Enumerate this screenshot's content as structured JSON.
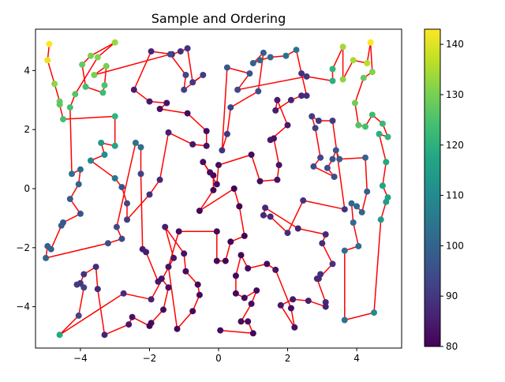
{
  "chart_data": {
    "type": "scatter",
    "title": "Sample and Ordering",
    "xlabel": "",
    "ylabel": "",
    "xlim": [
      -5.3,
      5.3
    ],
    "ylim": [
      -5.4,
      5.4
    ],
    "x_ticks": [
      -4,
      -2,
      0,
      2,
      4
    ],
    "y_ticks": [
      -4,
      -2,
      0,
      2,
      4
    ],
    "grid": false,
    "colormap": "viridis",
    "color_range": [
      80,
      143
    ],
    "colorbar_ticks": [
      80,
      90,
      100,
      110,
      120,
      130,
      140
    ],
    "line_color": "#ff0000",
    "colors": {
      "viridis": [
        "#440154",
        "#482475",
        "#414487",
        "#355f8d",
        "#2a788e",
        "#21918c",
        "#22a884",
        "#44bf70",
        "#7ad151",
        "#bddf26",
        "#fde725"
      ],
      "axes": "#000000",
      "background": "#ffffff"
    },
    "series": [
      {
        "name": "",
        "points": [
          [
            -4.9,
            4.9,
            143
          ],
          [
            -4.95,
            4.35,
            141
          ],
          [
            -4.75,
            3.55,
            132
          ],
          [
            -4.6,
            2.95,
            128
          ],
          [
            -4.6,
            2.85,
            127
          ],
          [
            -4.5,
            2.35,
            124
          ],
          [
            -3.0,
            2.45,
            121
          ],
          [
            -3.0,
            1.45,
            117
          ],
          [
            -3.4,
            1.55,
            114
          ],
          [
            -3.3,
            1.15,
            111
          ],
          [
            -3.7,
            0.95,
            109
          ],
          [
            -3.0,
            0.35,
            105
          ],
          [
            -2.8,
            0.05,
            96
          ],
          [
            -2.65,
            -0.5,
            93
          ],
          [
            -2.65,
            -1.05,
            91
          ],
          [
            -2.0,
            -0.2,
            88
          ],
          [
            -1.7,
            0.3,
            87
          ],
          [
            -1.45,
            1.9,
            85
          ],
          [
            -0.75,
            1.5,
            84
          ],
          [
            -0.35,
            1.45,
            83
          ],
          [
            -0.35,
            1.95,
            82
          ],
          [
            -0.9,
            2.55,
            82
          ],
          [
            -1.7,
            2.7,
            82
          ],
          [
            -1.5,
            2.9,
            83
          ],
          [
            -2.0,
            2.95,
            84
          ],
          [
            -2.45,
            3.35,
            85
          ],
          [
            -1.95,
            4.65,
            86
          ],
          [
            -1.35,
            4.55,
            87
          ],
          [
            -1.1,
            4.65,
            88
          ],
          [
            -0.9,
            4.75,
            89
          ],
          [
            -0.75,
            3.6,
            90
          ],
          [
            -0.45,
            3.85,
            91
          ],
          [
            -1.0,
            3.35,
            92
          ],
          [
            -0.95,
            3.85,
            93
          ],
          [
            -1.4,
            4.55,
            94
          ],
          [
            -3.6,
            3.85,
            130
          ],
          [
            -3.25,
            4.15,
            130
          ],
          [
            -3.3,
            3.5,
            125
          ],
          [
            -3.35,
            3.25,
            123
          ],
          [
            -3.85,
            3.45,
            124
          ],
          [
            -3.95,
            4.2,
            128
          ],
          [
            -3.7,
            4.5,
            130
          ],
          [
            -3.0,
            4.95,
            133
          ],
          [
            -3.5,
            4.45,
            131
          ],
          [
            -4.15,
            3.2,
            126
          ],
          [
            -4.3,
            2.75,
            124
          ],
          [
            -4.25,
            0.5,
            103
          ],
          [
            -4.0,
            0.65,
            102
          ],
          [
            -4.05,
            0.15,
            100
          ],
          [
            -4.3,
            -0.35,
            98
          ],
          [
            -4.0,
            -0.85,
            96
          ],
          [
            -4.5,
            -1.15,
            97
          ],
          [
            -4.55,
            -1.25,
            98
          ],
          [
            -4.85,
            -2.05,
            99
          ],
          [
            -4.95,
            -1.95,
            100
          ],
          [
            -5.0,
            -2.35,
            101
          ],
          [
            -3.2,
            -1.85,
            95
          ],
          [
            -2.8,
            -1.7,
            94
          ],
          [
            -2.95,
            -1.3,
            93
          ],
          [
            -2.4,
            1.55,
            104
          ],
          [
            -2.25,
            1.4,
            103
          ],
          [
            -2.25,
            0.5,
            92
          ],
          [
            -2.2,
            -2.05,
            85
          ],
          [
            -2.1,
            -2.15,
            85
          ],
          [
            -1.75,
            -3.15,
            84
          ],
          [
            -1.65,
            -3.05,
            83
          ],
          [
            -1.45,
            -3.35,
            83
          ],
          [
            -1.6,
            -4.1,
            82
          ],
          [
            -1.95,
            -4.55,
            82
          ],
          [
            -2.0,
            -4.65,
            81
          ],
          [
            -2.5,
            -4.35,
            83
          ],
          [
            -2.6,
            -4.6,
            84
          ],
          [
            -3.3,
            -4.95,
            86
          ],
          [
            -3.5,
            -3.4,
            87
          ],
          [
            -3.55,
            -2.65,
            88
          ],
          [
            -3.9,
            -2.9,
            89
          ],
          [
            -4.0,
            -3.2,
            90
          ],
          [
            -4.1,
            -3.25,
            91
          ],
          [
            -3.9,
            -3.35,
            92
          ],
          [
            -4.05,
            -4.3,
            93
          ],
          [
            -4.6,
            -4.95,
            118
          ],
          [
            -2.75,
            -3.55,
            88
          ],
          [
            -1.95,
            -3.75,
            86
          ],
          [
            -1.3,
            -2.35,
            84
          ],
          [
            -1.55,
            -1.3,
            85
          ],
          [
            -1.0,
            -2.2,
            83
          ],
          [
            -0.95,
            -2.8,
            82
          ],
          [
            -0.6,
            -3.25,
            81
          ],
          [
            -0.55,
            -3.6,
            81
          ],
          [
            -0.75,
            -4.15,
            81
          ],
          [
            -1.2,
            -4.75,
            81
          ],
          [
            -1.45,
            -2.65,
            83
          ],
          [
            -1.15,
            -1.45,
            82
          ],
          [
            -0.05,
            -1.45,
            81
          ],
          [
            -0.05,
            -2.45,
            81
          ],
          [
            0.2,
            -2.45,
            80
          ],
          [
            0.35,
            -1.8,
            80
          ],
          [
            0.75,
            -1.6,
            80
          ],
          [
            0.6,
            -0.6,
            80
          ],
          [
            0.45,
            0.0,
            80
          ],
          [
            -0.55,
            -0.75,
            81
          ],
          [
            -0.15,
            -0.05,
            81
          ],
          [
            -0.15,
            0.45,
            81
          ],
          [
            -0.25,
            0.55,
            82
          ],
          [
            -0.45,
            0.9,
            82
          ],
          [
            -0.05,
            0.15,
            82
          ],
          [
            0.0,
            0.8,
            82
          ],
          [
            0.95,
            1.15,
            82
          ],
          [
            1.2,
            0.25,
            82
          ],
          [
            1.7,
            0.3,
            83
          ],
          [
            1.75,
            0.8,
            83
          ],
          [
            1.6,
            1.7,
            83
          ],
          [
            1.5,
            1.65,
            84
          ],
          [
            2.0,
            2.15,
            84
          ],
          [
            1.7,
            3.0,
            85
          ],
          [
            1.65,
            2.65,
            85
          ],
          [
            2.1,
            3.0,
            86
          ],
          [
            2.4,
            3.15,
            87
          ],
          [
            2.55,
            3.15,
            88
          ],
          [
            2.4,
            3.9,
            89
          ],
          [
            2.25,
            4.7,
            104
          ],
          [
            1.95,
            4.5,
            103
          ],
          [
            1.5,
            4.45,
            102
          ],
          [
            1.2,
            4.35,
            101
          ],
          [
            1.0,
            4.25,
            100
          ],
          [
            1.3,
            4.6,
            99
          ],
          [
            1.15,
            3.3,
            95
          ],
          [
            0.35,
            2.75,
            92
          ],
          [
            0.25,
            1.85,
            90
          ],
          [
            0.1,
            1.3,
            89
          ],
          [
            0.25,
            4.1,
            97
          ],
          [
            0.9,
            3.9,
            96
          ],
          [
            0.55,
            3.35,
            93
          ],
          [
            2.55,
            3.8,
            90
          ],
          [
            3.3,
            3.65,
            120
          ],
          [
            3.3,
            4.05,
            121
          ],
          [
            3.6,
            4.8,
            134
          ],
          [
            3.6,
            3.7,
            132
          ],
          [
            3.9,
            4.35,
            135
          ],
          [
            4.3,
            4.25,
            136
          ],
          [
            4.4,
            4.95,
            143
          ],
          [
            4.45,
            3.95,
            131
          ],
          [
            4.2,
            3.75,
            128
          ],
          [
            3.95,
            2.9,
            129
          ],
          [
            4.05,
            2.15,
            126
          ],
          [
            4.25,
            2.1,
            124
          ],
          [
            4.45,
            2.5,
            123
          ],
          [
            4.75,
            2.2,
            122
          ],
          [
            4.9,
            1.75,
            121
          ],
          [
            4.65,
            1.85,
            120
          ],
          [
            4.85,
            0.9,
            118
          ],
          [
            4.75,
            0.1,
            117
          ],
          [
            4.9,
            -0.3,
            116
          ],
          [
            4.85,
            -0.45,
            115
          ],
          [
            4.7,
            -1.05,
            114
          ],
          [
            4.5,
            -4.2,
            110
          ],
          [
            3.65,
            -4.45,
            104
          ],
          [
            3.65,
            -2.1,
            103
          ],
          [
            4.05,
            -1.95,
            103
          ],
          [
            3.9,
            -1.15,
            102
          ],
          [
            3.85,
            -0.5,
            101
          ],
          [
            4.0,
            -0.6,
            101
          ],
          [
            4.15,
            -0.8,
            100
          ],
          [
            4.3,
            -0.1,
            99
          ],
          [
            4.25,
            1.05,
            100
          ],
          [
            3.5,
            1.0,
            98
          ],
          [
            3.4,
            1.3,
            97
          ],
          [
            3.3,
            1.0,
            96
          ],
          [
            3.15,
            0.7,
            95
          ],
          [
            3.35,
            0.4,
            95
          ],
          [
            2.75,
            0.75,
            94
          ],
          [
            2.95,
            1.05,
            93
          ],
          [
            2.8,
            2.05,
            92
          ],
          [
            2.7,
            2.45,
            91
          ],
          [
            2.9,
            2.3,
            90
          ],
          [
            3.3,
            2.3,
            91
          ],
          [
            3.65,
            -0.7,
            89
          ],
          [
            2.45,
            -0.4,
            89
          ],
          [
            2.0,
            -1.5,
            88
          ],
          [
            1.5,
            -0.95,
            88
          ],
          [
            1.3,
            -0.9,
            87
          ],
          [
            1.35,
            -0.65,
            87
          ],
          [
            2.3,
            -1.35,
            86
          ],
          [
            3.1,
            -1.55,
            87
          ],
          [
            3.0,
            -1.85,
            88
          ],
          [
            3.3,
            -2.55,
            89
          ],
          [
            2.9,
            -3.05,
            88
          ],
          [
            2.95,
            -2.9,
            88
          ],
          [
            2.85,
            -3.05,
            87
          ],
          [
            3.1,
            -3.85,
            87
          ],
          [
            3.1,
            -4.0,
            86
          ],
          [
            2.6,
            -3.8,
            85
          ],
          [
            2.15,
            -3.75,
            84
          ],
          [
            1.8,
            -3.95,
            84
          ],
          [
            2.2,
            -4.7,
            83
          ],
          [
            2.1,
            -4.05,
            82
          ],
          [
            1.65,
            -2.75,
            83
          ],
          [
            1.4,
            -2.55,
            82
          ],
          [
            0.85,
            -2.7,
            82
          ],
          [
            0.65,
            -2.25,
            81
          ],
          [
            0.5,
            -2.95,
            81
          ],
          [
            0.5,
            -3.55,
            81
          ],
          [
            0.75,
            -3.7,
            81
          ],
          [
            1.1,
            -3.45,
            81
          ],
          [
            0.95,
            -3.9,
            82
          ],
          [
            0.65,
            -4.5,
            82
          ],
          [
            0.85,
            -4.5,
            82
          ],
          [
            1.0,
            -4.9,
            81
          ],
          [
            0.05,
            -4.8,
            82
          ]
        ]
      }
    ]
  }
}
